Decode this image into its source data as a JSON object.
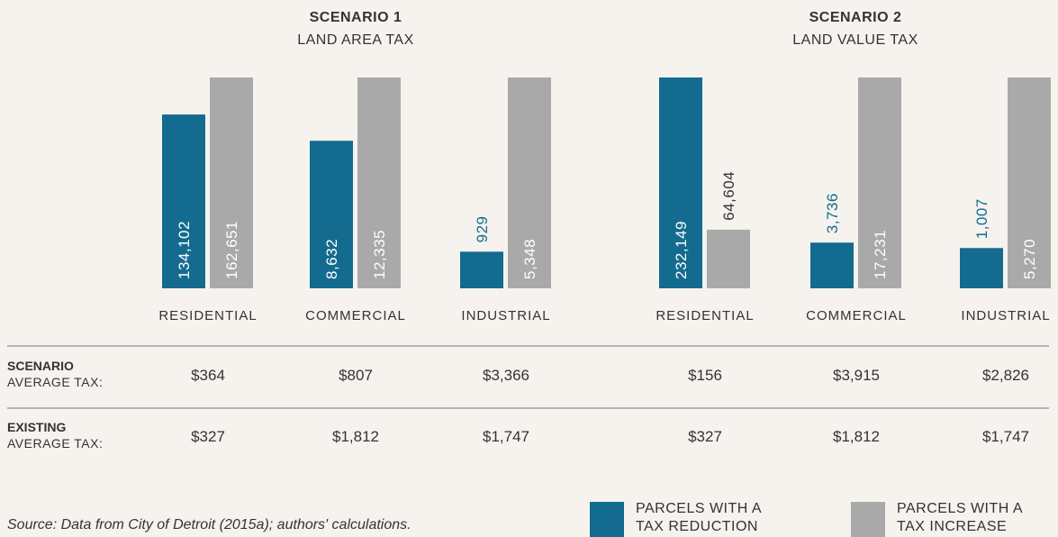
{
  "chart_data": [
    {
      "type": "bar",
      "title": "SCENARIO 1",
      "subtitle": "LAND AREA TAX",
      "categories": [
        "RESIDENTIAL",
        "COMMERCIAL",
        "INDUSTRIAL"
      ],
      "series": [
        {
          "name": "PARCELS WITH A TAX REDUCTION",
          "color": "#136b8f",
          "values": [
            134102,
            8632,
            929
          ],
          "value_labels": [
            "134,102",
            "8,632",
            "929"
          ]
        },
        {
          "name": "PARCELS WITH A TAX INCREASE",
          "color": "#a9a9a9",
          "values": [
            162651,
            12335,
            5348
          ],
          "value_labels": [
            "162,651",
            "12,335",
            "5,348"
          ]
        }
      ]
    },
    {
      "type": "bar",
      "title": "SCENARIO 2",
      "subtitle": "LAND VALUE TAX",
      "categories": [
        "RESIDENTIAL",
        "COMMERCIAL",
        "INDUSTRIAL"
      ],
      "series": [
        {
          "color": "#136b8f",
          "values": [
            232149,
            3736,
            1007
          ],
          "value_labels": [
            "232,149",
            "3,736",
            "1,007"
          ]
        },
        {
          "color": "#a9a9a9",
          "values": [
            64604,
            17231,
            5270
          ],
          "value_labels": [
            "64,604",
            "17,231",
            "5,270"
          ]
        }
      ]
    }
  ],
  "table": {
    "rows": [
      {
        "title": "SCENARIO",
        "label": "AVERAGE TAX:",
        "values": [
          "$364",
          "$807",
          "$3,366",
          "$156",
          "$3,915",
          "$2,826"
        ]
      },
      {
        "title": "EXISTING",
        "label": "AVERAGE TAX:",
        "values": [
          "$327",
          "$1,812",
          "$1,747",
          "$327",
          "$1,812",
          "$1,747"
        ]
      }
    ]
  },
  "source": "Source: Data from City of Detroit (2015a); authors' calculations."
}
